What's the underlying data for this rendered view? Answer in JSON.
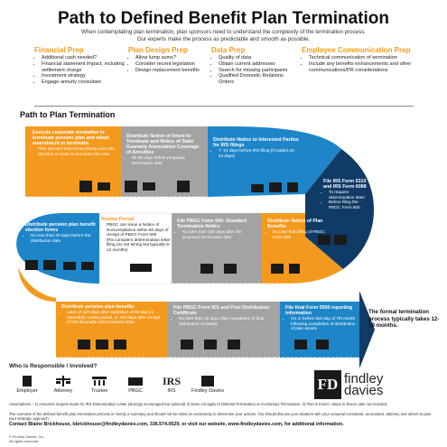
{
  "title": "Path to Defined Benefit Plan Termination",
  "subtitle_line1": "When contemplating plan termination, plan sponsors need to understand the complexity of the termination process.",
  "subtitle_line2": "Our experts make the process as predictable and smooth as possible.",
  "prep": [
    {
      "title": "Financial Prep",
      "items": [
        "Additional cash needed?",
        "Financial statement impact, including settlement charge",
        "Investment strategy",
        "Engage annuity consultant"
      ]
    },
    {
      "title": "Plan Design Prep",
      "items": [
        "Allow lump sums?",
        "Consider recent legislation",
        "Design replacement benefits"
      ]
    },
    {
      "title": "Data Prep",
      "items": [
        "Quality of data",
        "Obtain current addresses",
        "Search for missing participants",
        "Qualified Domestic Relations Orders"
      ]
    },
    {
      "title": "Employee Communication Prep",
      "items": [
        "Technical communication of termination",
        "Include any benefits enhancements and other communications/PR considerations"
      ]
    }
  ],
  "path_label": "Path to Plan Termination",
  "steps": [
    {
      "title": "Execute corporate resolution to terminate pension plan and adopt amendment to terminate.",
      "items": [
        "Plan sponsor determines timing once the decision is made to terminate the plan"
      ]
    },
    {
      "title": "Distribute Notice of Intent to Terminate and Notice of State Guaranty Association Coverage of Annuities",
      "items": [
        "60-90 days before proposed termination date"
      ]
    },
    {
      "title": "Distribute Notice to Interested Parties for IRS filings",
      "items": [
        "7 -21 days before IRS filing (if mailed,10-24 days)"
      ]
    },
    {
      "title": "File IRS Form 5310 and IRS Form 6088",
      "items": [
        "To request determination letter",
        "Before filing the PBGC Form 500"
      ]
    },
    {
      "title": "Distribute Notice of Plan Benefits",
      "items": [
        "No later than filing of PBGC Form 500"
      ]
    },
    {
      "title": "File PBGC Form 500- Standard Termination Notice",
      "items": [
        "No later than 180 days after the proposed termination date"
      ]
    },
    {
      "title": "Review Period",
      "items": [
        "PBGC can issue a Notice of Noncompliance within 60 days of receipt of PBGC Form 500",
        "IRS considers determination letter filing (no set timing but typically 9-12 months)"
      ]
    },
    {
      "title": "Distribute pension plan benefit election forms",
      "items": [
        "No less than 30 days before the distribution date"
      ]
    },
    {
      "title": "Distribute pension plan benefits",
      "items": [
        "Later of 180 days after expiration of 60-day (or extended) review period, or 120 days after receipt of IRS favorable determination letter"
      ]
    },
    {
      "title": "File PBGC Form 501 and Post Distribution Certificate",
      "items": [
        "No later than 30 days after completion of final distribution of assets"
      ]
    },
    {
      "title": "File final Form 5500 reporting information",
      "items": [
        "On or before last day of 7th month following completion of distribution of plan assets"
      ]
    }
  ],
  "final_note": "The formal termination process typically takes 12-18 months.",
  "who_label": "Who is Responsible / Involved?",
  "legend": [
    "Employer",
    "Attorney",
    "Trustee",
    "PBGC",
    "IRS",
    "Findley Davies"
  ],
  "logo": {
    "mark": "FD",
    "line1": "findley",
    "line2": "davies"
  },
  "footnote1": "Assumptions – 1) Assumes request made for IRS Determination Letter (strongly encouraged but optional) 2) Does not apply to Distress Termination or Involuntary Termination. 3) Plan is frozen. Steps to freeze plan not included.",
  "footnote2": "The overview of the defined benefit plan termination process is merely a summary and should not be relied on exclusively to determine your actions. You should discuss your situation with your actuarial consultant, accountant, attorney and others to plan your strategic approach.",
  "contact": "Contact Blaine Brickhouse, bbrickhouse@findleydavies.com, 336.574.0529, or visit our website, www.findleydavies.com, for additional information.",
  "copyright1": "© Findley Davies, Inc.",
  "copyright2": "All rights reserved",
  "colors": {
    "orange": "#f39a1e",
    "navy": "#0f3b66",
    "blue": "#1e86c8",
    "gray": "#a3a3a3",
    "dark": "#1a1a1a"
  },
  "icons": [
    "employer-icon",
    "attorney-icon",
    "trustee-icon",
    "pbgc-icon",
    "irs-icon",
    "findley-davies-icon"
  ]
}
